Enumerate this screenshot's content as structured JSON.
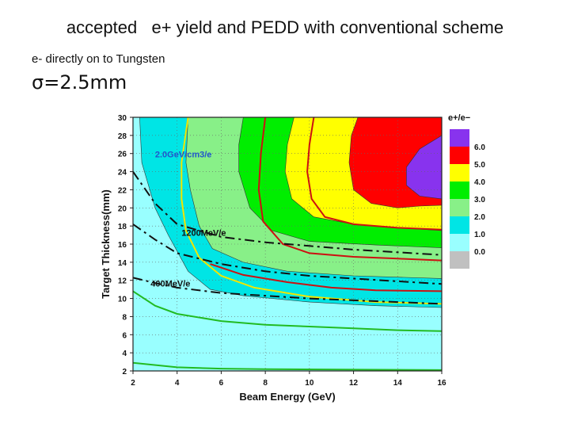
{
  "slide": {
    "title": "accepted   e+ yield and PEDD with conventional scheme",
    "subtitle": "e- directly on to Tungsten",
    "sigma_label": "σ=2.5mm"
  },
  "chart_data": {
    "type": "contour",
    "xlabel": "Beam Energy (GeV)",
    "ylabel": "Target Thickness(mm)",
    "xlim": [
      2,
      16
    ],
    "ylim": [
      2,
      30
    ],
    "x_ticks": [
      2,
      4,
      6,
      8,
      10,
      12,
      14,
      16
    ],
    "y_ticks": [
      2,
      4,
      6,
      8,
      10,
      12,
      14,
      16,
      18,
      20,
      22,
      24,
      26,
      28,
      30
    ],
    "legend": {
      "title": "e+/e−",
      "levels": [
        {
          "label": "6.0",
          "color": "#8833ee"
        },
        {
          "label": "5.0",
          "color": "#ff0000"
        },
        {
          "label": "4.0",
          "color": "#ffff00"
        },
        {
          "label": "3.0",
          "color": "#00ee00"
        },
        {
          "label": "2.0",
          "color": "#88f088"
        },
        {
          "label": "1.0",
          "color": "#00e5e5"
        },
        {
          "label": "0.0",
          "color": "#99ffff"
        },
        {
          "label": "",
          "color": "#c0c0c0"
        }
      ]
    },
    "filled_contours": [
      {
        "level": 1.0,
        "color": "#00e5e5",
        "boundary": [
          [
            2.3,
            30
          ],
          [
            2.4,
            25
          ],
          [
            3.0,
            20
          ],
          [
            3.6,
            17
          ],
          [
            4.5,
            13
          ],
          [
            5.5,
            11
          ],
          [
            7,
            10.3
          ],
          [
            10,
            9.6
          ],
          [
            13,
            9.2
          ],
          [
            16,
            9.0
          ]
        ]
      },
      {
        "level": 2.0,
        "color": "#88f088",
        "boundary": [
          [
            4.5,
            30
          ],
          [
            4.4,
            25
          ],
          [
            4.6,
            22
          ],
          [
            5.0,
            18
          ],
          [
            5.6,
            15.5
          ],
          [
            7,
            14
          ],
          [
            9,
            13
          ],
          [
            12,
            12.5
          ],
          [
            16,
            12.2
          ]
        ]
      },
      {
        "level": 3.0,
        "color": "#00ee00",
        "boundary": [
          [
            7.0,
            30
          ],
          [
            6.8,
            27
          ],
          [
            6.8,
            24
          ],
          [
            7.3,
            20
          ],
          [
            8.3,
            17.5
          ],
          [
            10,
            16.3
          ],
          [
            13,
            15.9
          ],
          [
            16,
            15.6
          ]
        ]
      },
      {
        "level": 4.0,
        "color": "#ffff00",
        "boundary": [
          [
            9.3,
            30
          ],
          [
            9.0,
            27
          ],
          [
            8.9,
            24
          ],
          [
            9.2,
            21
          ],
          [
            10.2,
            19
          ],
          [
            12,
            18.2
          ],
          [
            14,
            17.8
          ],
          [
            16,
            17.5
          ]
        ]
      },
      {
        "level": 5.0,
        "color": "#ff0000",
        "boundary": [
          [
            12.2,
            30
          ],
          [
            11.9,
            28
          ],
          [
            11.8,
            25
          ],
          [
            12.0,
            22
          ],
          [
            12.8,
            20.5
          ],
          [
            14,
            20.0
          ],
          [
            15,
            20.2
          ],
          [
            16,
            20.3
          ]
        ]
      },
      {
        "level": 6.0,
        "color": "#8833ee",
        "boundary": [
          [
            16,
            28
          ],
          [
            15.0,
            26.5
          ],
          [
            14.4,
            24.5
          ],
          [
            14.4,
            22.5
          ],
          [
            15.0,
            21.3
          ],
          [
            16,
            21.0
          ]
        ]
      }
    ],
    "contour_lines": [
      {
        "label": "yellow",
        "color": "#f2e600",
        "points": [
          [
            4.5,
            30
          ],
          [
            4.2,
            25
          ],
          [
            4.2,
            21
          ],
          [
            4.4,
            17.5
          ],
          [
            5,
            14.5
          ],
          [
            6,
            12.5
          ],
          [
            7.5,
            11.2
          ],
          [
            10,
            10.2
          ],
          [
            13,
            9.6
          ],
          [
            16,
            9.4
          ]
        ]
      },
      {
        "label": "red-1",
        "color": "#cc1111",
        "points": [
          [
            8.0,
            30
          ],
          [
            7.8,
            26
          ],
          [
            7.7,
            22
          ],
          [
            7.9,
            18.5
          ],
          [
            8.8,
            16
          ],
          [
            10,
            15
          ],
          [
            12,
            14.6
          ],
          [
            14,
            14.4
          ],
          [
            16,
            14.2
          ]
        ]
      },
      {
        "label": "red-2",
        "color": "#cc1111",
        "points": [
          [
            10.2,
            30
          ],
          [
            10.0,
            27
          ],
          [
            9.9,
            24
          ],
          [
            10.1,
            21
          ],
          [
            10.7,
            19
          ],
          [
            12,
            18.2
          ],
          [
            14,
            17.8
          ],
          [
            16,
            17.6
          ]
        ]
      },
      {
        "label": "red-low",
        "color": "#cc1111",
        "points": [
          [
            5.5,
            13.8
          ],
          [
            7,
            12.6
          ],
          [
            9,
            11.8
          ],
          [
            11,
            11.2
          ],
          [
            13,
            10.9
          ],
          [
            16,
            10.8
          ]
        ]
      },
      {
        "label": "green-1",
        "color": "#22bb22",
        "points": [
          [
            2,
            10.8
          ],
          [
            3,
            9.2
          ],
          [
            4,
            8.3
          ],
          [
            6,
            7.5
          ],
          [
            8,
            7.1
          ],
          [
            10,
            6.9
          ],
          [
            12,
            6.7
          ],
          [
            14,
            6.5
          ],
          [
            16,
            6.4
          ]
        ]
      },
      {
        "label": "green-2",
        "color": "#22bb22",
        "points": [
          [
            2,
            2.9
          ],
          [
            4,
            2.4
          ],
          [
            6,
            2.25
          ],
          [
            8,
            2.2
          ],
          [
            16,
            2.1
          ]
        ]
      }
    ],
    "pedd_lines": [
      {
        "label": "2.0GeV/cm3/e",
        "points": [
          [
            2,
            24
          ],
          [
            3,
            20.5
          ],
          [
            4,
            18.2
          ],
          [
            6,
            16.8
          ],
          [
            8,
            16.2
          ],
          [
            10,
            15.8
          ],
          [
            12,
            15.4
          ],
          [
            14,
            15.1
          ],
          [
            16,
            14.8
          ]
        ]
      },
      {
        "label": "1200MeV/e",
        "points": [
          [
            2,
            18.2
          ],
          [
            3,
            16.5
          ],
          [
            4,
            15
          ],
          [
            6,
            13.8
          ],
          [
            8,
            13.0
          ],
          [
            10,
            12.5
          ],
          [
            12,
            12.2
          ],
          [
            14,
            11.9
          ],
          [
            16,
            11.6
          ]
        ]
      },
      {
        "label": "400MeV/e",
        "points": [
          [
            2,
            12.3
          ],
          [
            3,
            11.7
          ],
          [
            4,
            11.2
          ],
          [
            6,
            10.6
          ],
          [
            8,
            10.3
          ],
          [
            10,
            10.0
          ],
          [
            12,
            9.8
          ],
          [
            14,
            9.6
          ],
          [
            16,
            9.4
          ]
        ]
      }
    ],
    "annotations": [
      {
        "text": "2.0GeV/cm3/e",
        "x": 3.0,
        "y": 25.6,
        "color": "#2255cc"
      },
      {
        "text": "1200MeV/e",
        "x": 4.2,
        "y": 16.9,
        "color": "#111111"
      },
      {
        "text": "400MeV/e",
        "x": 2.8,
        "y": 11.3,
        "color": "#111111"
      }
    ]
  }
}
